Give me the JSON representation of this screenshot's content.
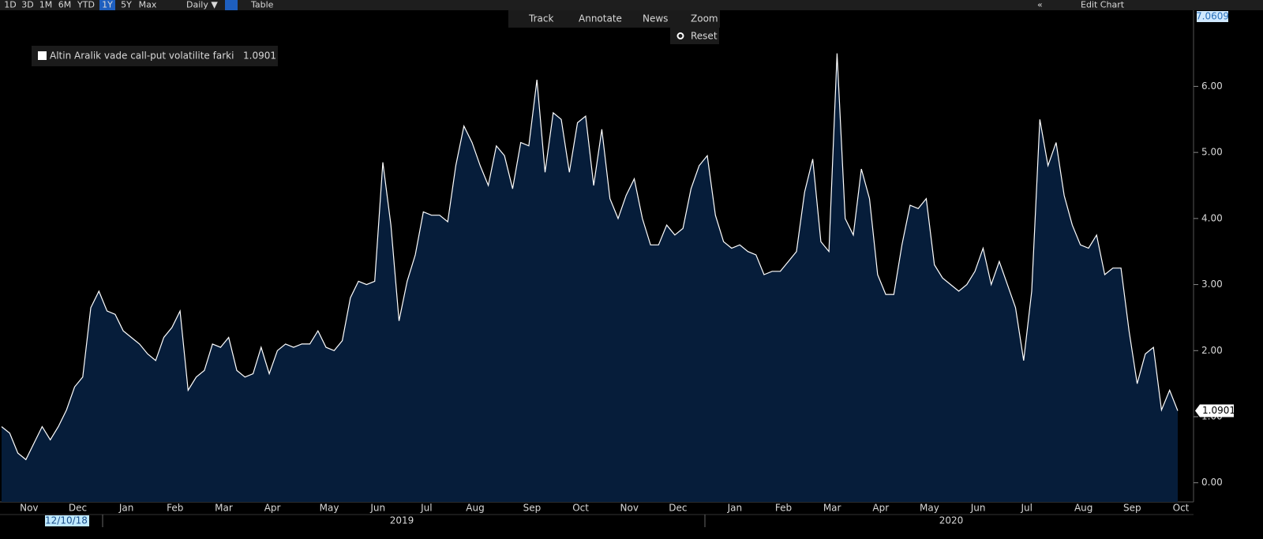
{
  "toolbar": {
    "ranges": [
      "1D",
      "3D",
      "1M",
      "6M",
      "YTD",
      "1Y",
      "5Y",
      "Max"
    ],
    "active_range": "1Y",
    "frequency": "Daily ▼",
    "table": "Table",
    "edit": "Edit Chart"
  },
  "chart_tools": [
    "Track",
    "Annotate",
    "News",
    "Zoom"
  ],
  "reset": "Reset",
  "chart_data": {
    "type": "area",
    "top_label": "7.0609",
    "period_labels": [
      "12/10/18",
      "2019",
      "2020"
    ],
    "categories": [
      null,
      null,
      null,
      "Nov",
      null,
      null,
      null,
      null,
      null,
      "Dec",
      null,
      null,
      null,
      null,
      null,
      "Jan",
      null,
      null,
      null,
      null,
      null,
      "Feb",
      null,
      null,
      null,
      null,
      null,
      "Mar",
      null,
      null,
      null,
      null,
      null,
      "Apr",
      null,
      null,
      null,
      null,
      null,
      null,
      "May",
      null,
      null,
      null,
      null,
      null,
      "Jun",
      null,
      null,
      null,
      null,
      null,
      "Jul",
      null,
      null,
      null,
      null,
      null,
      "Aug",
      null,
      null,
      null,
      null,
      null,
      null,
      "Sep",
      null,
      null,
      null,
      null,
      null,
      "Oct",
      null,
      null,
      null,
      null,
      null,
      "Nov",
      null,
      null,
      null,
      null,
      null,
      "Dec",
      null,
      null,
      null,
      null,
      null,
      null,
      "Jan",
      null,
      null,
      null,
      null,
      null,
      "Feb",
      null,
      null,
      null,
      null,
      null,
      "Mar",
      null,
      null,
      null,
      null,
      null,
      "Apr",
      null,
      null,
      null,
      null,
      null,
      "May",
      null,
      null,
      null,
      null,
      null,
      "Jun",
      null,
      null,
      null,
      null,
      null,
      "Jul",
      null,
      null,
      null,
      null,
      null,
      null,
      "Aug",
      null,
      null,
      null,
      null,
      null,
      "Sep",
      null,
      null,
      null,
      null,
      null,
      "Oct"
    ],
    "series": [
      {
        "name": "Altin Aralik vade call-put volatilite farki",
        "color": "#ffffff",
        "fill": "#061d3a",
        "values": [
          0.85,
          0.75,
          0.45,
          0.35,
          0.6,
          0.85,
          0.65,
          0.85,
          1.1,
          1.45,
          1.6,
          2.65,
          2.9,
          2.6,
          2.55,
          2.3,
          2.2,
          2.1,
          1.95,
          1.85,
          2.2,
          2.35,
          2.6,
          1.4,
          1.6,
          1.7,
          2.1,
          2.05,
          2.2,
          1.7,
          1.6,
          1.65,
          2.05,
          1.65,
          2.0,
          2.1,
          2.05,
          2.1,
          2.1,
          2.3,
          2.05,
          2.0,
          2.15,
          2.8,
          3.05,
          3.0,
          3.05,
          4.85,
          3.9,
          2.45,
          3.05,
          3.45,
          4.1,
          4.05,
          4.05,
          3.95,
          4.8,
          5.4,
          5.15,
          4.8,
          4.5,
          5.1,
          4.95,
          4.45,
          5.15,
          5.1,
          6.1,
          4.7,
          5.6,
          5.5,
          4.7,
          5.45,
          5.55,
          4.5,
          5.35,
          4.3,
          4.0,
          4.35,
          4.6,
          4.0,
          3.6,
          3.6,
          3.9,
          3.75,
          3.85,
          4.45,
          4.8,
          4.95,
          4.05,
          3.65,
          3.55,
          3.6,
          3.5,
          3.45,
          3.15,
          3.2,
          3.2,
          3.35,
          3.5,
          4.4,
          4.9,
          3.65,
          3.5,
          6.5,
          4.0,
          3.75,
          4.75,
          4.3,
          3.15,
          2.85,
          2.85,
          3.6,
          4.2,
          4.15,
          4.3,
          3.3,
          3.1,
          3.0,
          2.9,
          3.0,
          3.2,
          3.55,
          3.0,
          3.35,
          3.0,
          2.65,
          1.85,
          2.9,
          5.5,
          4.8,
          5.15,
          4.35,
          3.9,
          3.6,
          3.55,
          3.75,
          3.15,
          3.25,
          3.25,
          2.3,
          1.5,
          1.95,
          2.05,
          1.1,
          1.4,
          1.0901
        ]
      }
    ],
    "ylim": [
      -0.29,
      7.14
    ],
    "yticks": [
      {
        "value": 0,
        "label": "0.00"
      },
      {
        "value": 1,
        "label": "1.00"
      },
      {
        "value": 2,
        "label": "2.00"
      },
      {
        "value": 3,
        "label": "3.00"
      },
      {
        "value": 4,
        "label": "4.00"
      },
      {
        "value": 5,
        "label": "5.00"
      },
      {
        "value": 6,
        "label": "6.00"
      }
    ],
    "grid": false
  }
}
